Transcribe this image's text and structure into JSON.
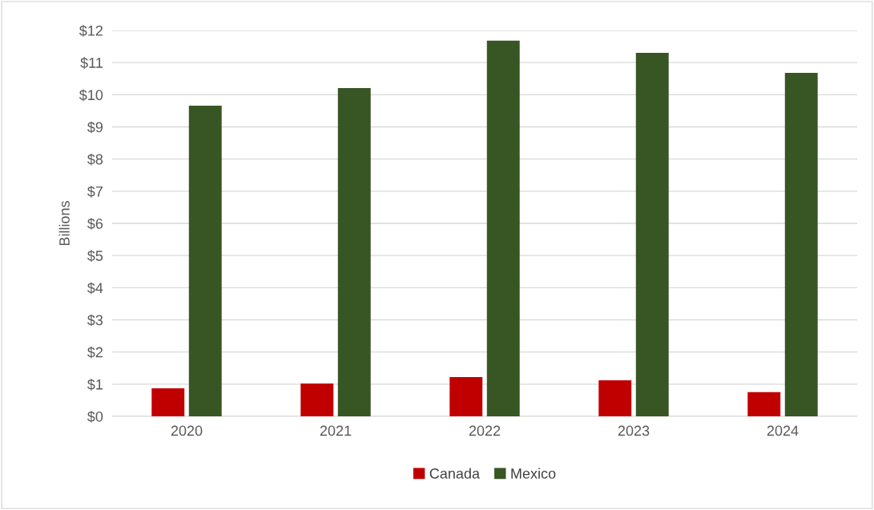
{
  "chart_data": {
    "type": "bar",
    "ylabel": "Billions",
    "categories": [
      "2020",
      "2021",
      "2022",
      "2023",
      "2024"
    ],
    "series": [
      {
        "name": "Canada",
        "color": "#c00000",
        "values": [
          0.87,
          1.02,
          1.22,
          1.12,
          0.75
        ]
      },
      {
        "name": "Mexico",
        "color": "#375623",
        "values": [
          9.66,
          10.21,
          11.68,
          11.3,
          10.68
        ]
      }
    ],
    "ylim": [
      0,
      12
    ],
    "yticks": [
      {
        "value": 0,
        "label": "$0"
      },
      {
        "value": 1,
        "label": "$1"
      },
      {
        "value": 2,
        "label": "$2"
      },
      {
        "value": 3,
        "label": "$3"
      },
      {
        "value": 4,
        "label": "$4"
      },
      {
        "value": 5,
        "label": "$5"
      },
      {
        "value": 6,
        "label": "$6"
      },
      {
        "value": 7,
        "label": "$7"
      },
      {
        "value": 8,
        "label": "$8"
      },
      {
        "value": 9,
        "label": "$9"
      },
      {
        "value": 10,
        "label": "$10"
      },
      {
        "value": 11,
        "label": "$11"
      },
      {
        "value": 12,
        "label": "$12"
      }
    ],
    "grid": "y",
    "legend": "bottom"
  }
}
